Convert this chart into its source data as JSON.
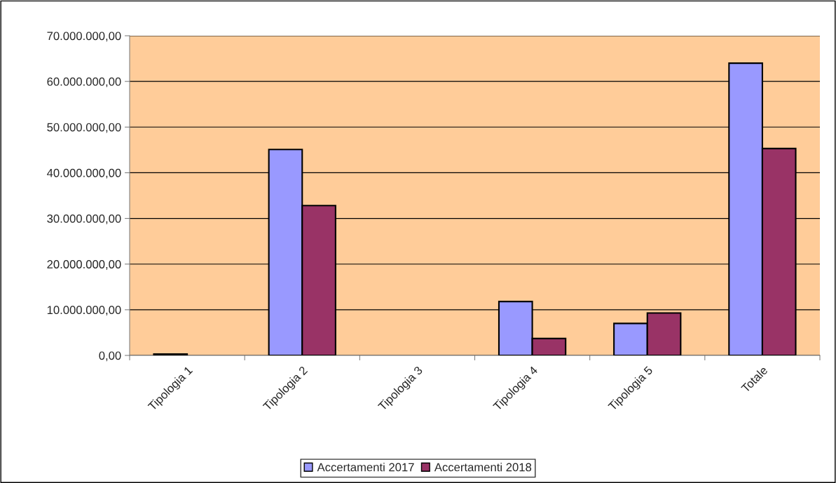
{
  "chart_data": {
    "type": "bar",
    "categories": [
      "Tipologia 1",
      "Tipologia 2",
      "Tipologia 3",
      "Tipologia 4",
      "Tipologia 5",
      "Totale"
    ],
    "series": [
      {
        "name": "Accertamenti 2017",
        "color": "#9999ff",
        "values": [
          300000,
          45100000,
          null,
          11800000,
          7000000,
          64000000
        ]
      },
      {
        "name": "Accertamenti 2018",
        "color": "#993366",
        "values": [
          null,
          32800000,
          null,
          3700000,
          9300000,
          45300000
        ]
      }
    ],
    "ylim": [
      0,
      70000000
    ],
    "yticks": [
      {
        "value": 0,
        "label": "0,00"
      },
      {
        "value": 10000000,
        "label": "10.000.000,00"
      },
      {
        "value": 20000000,
        "label": "20.000.000,00"
      },
      {
        "value": 30000000,
        "label": "30.000.000,00"
      },
      {
        "value": 40000000,
        "label": "40.000.000,00"
      },
      {
        "value": 50000000,
        "label": "50.000.000,00"
      },
      {
        "value": 60000000,
        "label": "60.000.000,00"
      },
      {
        "value": 70000000,
        "label": "70.000.000,00"
      }
    ],
    "grid": "y",
    "legend": "bottom"
  }
}
